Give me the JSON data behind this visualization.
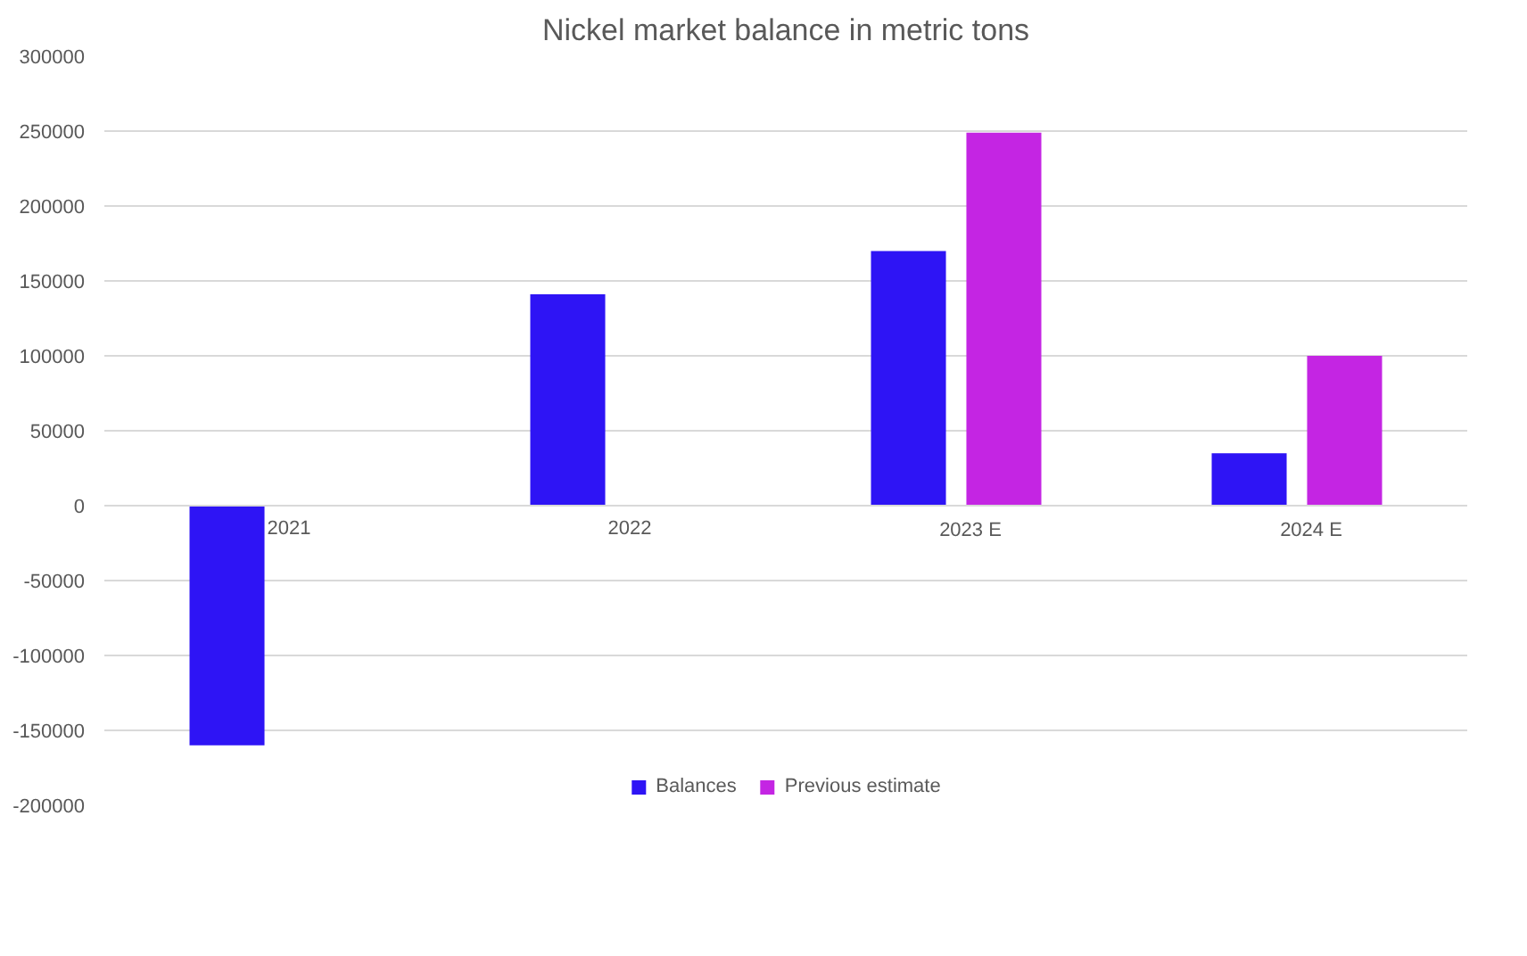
{
  "chart_data": {
    "type": "bar",
    "title": "Nickel market balance in metric tons",
    "categories": [
      "2021",
      "2022",
      "2023 E",
      "2024 E"
    ],
    "series": [
      {
        "name": "Balances",
        "color": "#2e14f5",
        "values": [
          -160000,
          141000,
          170000,
          35000
        ]
      },
      {
        "name": "Previous estimate",
        "color": "#c425e3",
        "values": [
          null,
          null,
          249000,
          100000
        ]
      }
    ],
    "ylim": [
      -200000,
      300000
    ],
    "yticks": [
      -200000,
      -150000,
      -100000,
      -50000,
      0,
      50000,
      100000,
      150000,
      200000,
      250000,
      300000
    ],
    "grid": "y",
    "legend": "bottom"
  }
}
